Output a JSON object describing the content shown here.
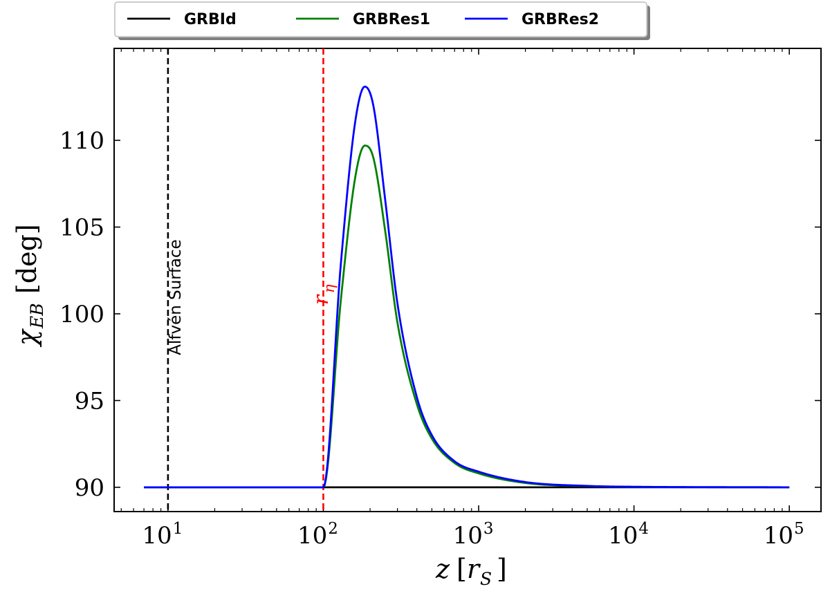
{
  "chart_data": {
    "type": "line",
    "title": "",
    "xlabel": "z [r_S]",
    "ylabel": "χ_EB [deg]",
    "xscale": "log",
    "xlim": [
      4.5,
      160000
    ],
    "ylim": [
      88.6,
      115.3
    ],
    "x_ticks": [
      {
        "value": 10,
        "base": "10",
        "exp": "1"
      },
      {
        "value": 100,
        "base": "10",
        "exp": "2"
      },
      {
        "value": 1000,
        "base": "10",
        "exp": "3"
      },
      {
        "value": 10000,
        "base": "10",
        "exp": "4"
      },
      {
        "value": 100000,
        "base": "10",
        "exp": "5"
      }
    ],
    "y_ticks": [
      "90",
      "95",
      "100",
      "105",
      "110"
    ],
    "legend_position": "top-center (outside plot)",
    "grid": false,
    "series": [
      {
        "name": "GRBId",
        "color": "#000000",
        "x": [
          7,
          100,
          1000,
          10000,
          100000
        ],
        "y": [
          90,
          90,
          90,
          90,
          90
        ]
      },
      {
        "name": "GRBRes1",
        "color": "#008000",
        "x": [
          7,
          100,
          130,
          160,
          185,
          210,
          250,
          300,
          400,
          500,
          700,
          1000,
          2000,
          5000,
          10000,
          100000
        ],
        "y": [
          90,
          90,
          100.9,
          107.8,
          109.7,
          109.0,
          104.8,
          99.5,
          94.8,
          92.8,
          91.4,
          90.8,
          90.25,
          90.07,
          90.02,
          90.0
        ]
      },
      {
        "name": "GRBRes2",
        "color": "#0000ff",
        "x": [
          7,
          100,
          130,
          160,
          185,
          210,
          250,
          300,
          400,
          500,
          700,
          1000,
          2000,
          5000,
          10000,
          100000
        ],
        "y": [
          90,
          90,
          103.0,
          111.0,
          113.1,
          112.0,
          106.6,
          100.6,
          95.2,
          93.0,
          91.5,
          90.9,
          90.3,
          90.08,
          90.03,
          90.0
        ]
      }
    ],
    "annotations": [
      {
        "label": "Alfvén Surface",
        "x": 10,
        "color": "#000000",
        "style": "dashed"
      },
      {
        "label": "r_η",
        "x": 100,
        "color": "#ff0000",
        "style": "dashed"
      }
    ]
  },
  "legend": {
    "items": [
      {
        "label": "GRBId",
        "color": "#000000"
      },
      {
        "label": "GRBRes1",
        "color": "#008000"
      },
      {
        "label": "GRBRes2",
        "color": "#0000ff"
      }
    ]
  },
  "annotations_text": {
    "alfven": "Alfvén Surface",
    "r_eta_main": "r",
    "r_eta_sub": "η"
  },
  "axis_labels": {
    "x_main": "z",
    "x_open": "[",
    "x_r": "r",
    "x_sub": "S",
    "x_close": "]",
    "y_chi": "χ",
    "y_sub": "EB",
    "y_unit": "[deg]"
  }
}
